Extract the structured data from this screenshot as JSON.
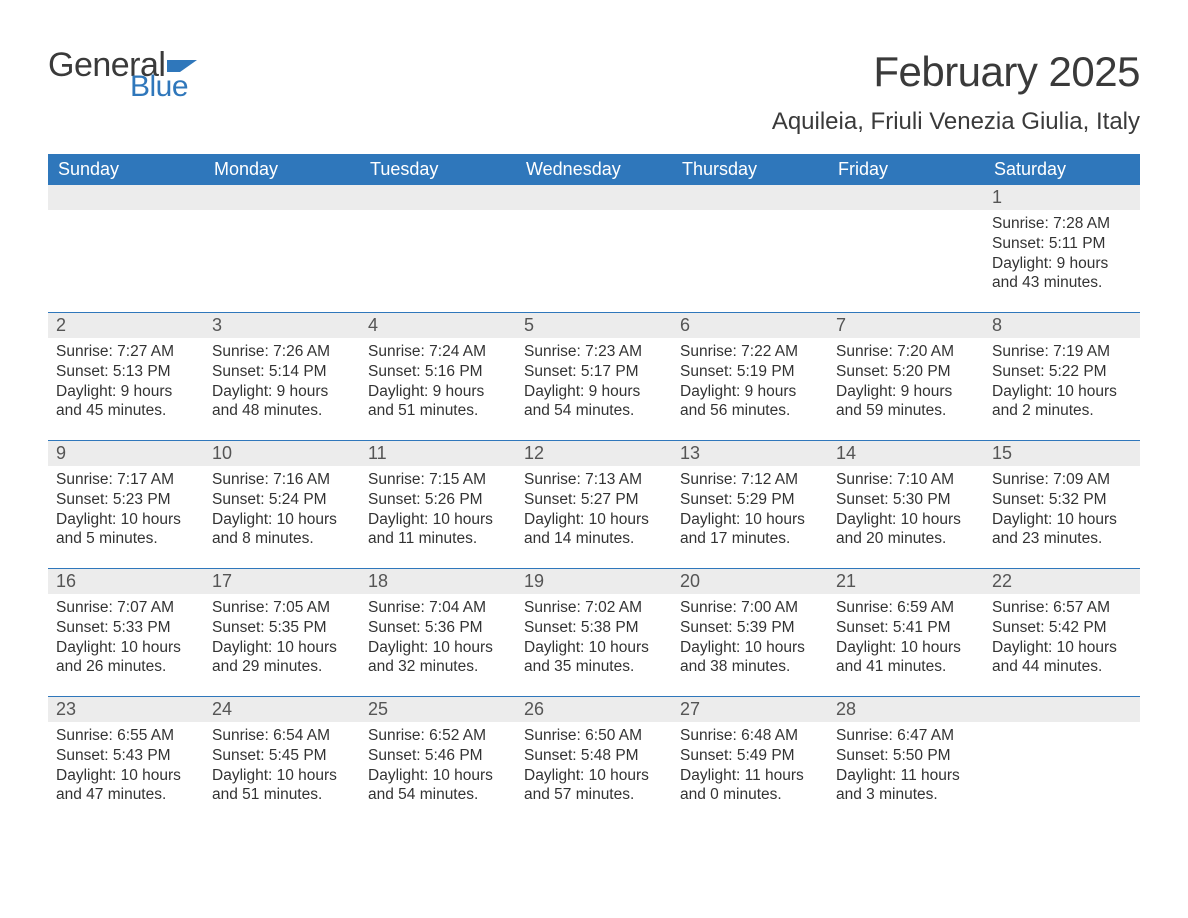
{
  "logo": {
    "text_general": "General",
    "text_blue": "Blue",
    "flag_color": "#2f77bb",
    "general_color": "#3a3a3a",
    "blue_color": "#2f77bb"
  },
  "title": "February 2025",
  "subtitle": "Aquileia, Friuli Venezia Giulia, Italy",
  "colors": {
    "header_bg": "#2f77bb",
    "header_text": "#ffffff",
    "daynum_bg": "#ececec",
    "daynum_text": "#555555",
    "body_text": "#333333",
    "rule": "#2f77bb",
    "page_bg": "#ffffff"
  },
  "weekdays": [
    "Sunday",
    "Monday",
    "Tuesday",
    "Wednesday",
    "Thursday",
    "Friday",
    "Saturday"
  ],
  "weeks": [
    {
      "days": [
        {
          "num": "",
          "lines": [
            "",
            "",
            "",
            ""
          ]
        },
        {
          "num": "",
          "lines": [
            "",
            "",
            "",
            ""
          ]
        },
        {
          "num": "",
          "lines": [
            "",
            "",
            "",
            ""
          ]
        },
        {
          "num": "",
          "lines": [
            "",
            "",
            "",
            ""
          ]
        },
        {
          "num": "",
          "lines": [
            "",
            "",
            "",
            ""
          ]
        },
        {
          "num": "",
          "lines": [
            "",
            "",
            "",
            ""
          ]
        },
        {
          "num": "1",
          "lines": [
            "Sunrise: 7:28 AM",
            "Sunset: 5:11 PM",
            "Daylight: 9 hours",
            "and 43 minutes."
          ]
        }
      ]
    },
    {
      "days": [
        {
          "num": "2",
          "lines": [
            "Sunrise: 7:27 AM",
            "Sunset: 5:13 PM",
            "Daylight: 9 hours",
            "and 45 minutes."
          ]
        },
        {
          "num": "3",
          "lines": [
            "Sunrise: 7:26 AM",
            "Sunset: 5:14 PM",
            "Daylight: 9 hours",
            "and 48 minutes."
          ]
        },
        {
          "num": "4",
          "lines": [
            "Sunrise: 7:24 AM",
            "Sunset: 5:16 PM",
            "Daylight: 9 hours",
            "and 51 minutes."
          ]
        },
        {
          "num": "5",
          "lines": [
            "Sunrise: 7:23 AM",
            "Sunset: 5:17 PM",
            "Daylight: 9 hours",
            "and 54 minutes."
          ]
        },
        {
          "num": "6",
          "lines": [
            "Sunrise: 7:22 AM",
            "Sunset: 5:19 PM",
            "Daylight: 9 hours",
            "and 56 minutes."
          ]
        },
        {
          "num": "7",
          "lines": [
            "Sunrise: 7:20 AM",
            "Sunset: 5:20 PM",
            "Daylight: 9 hours",
            "and 59 minutes."
          ]
        },
        {
          "num": "8",
          "lines": [
            "Sunrise: 7:19 AM",
            "Sunset: 5:22 PM",
            "Daylight: 10 hours",
            "and 2 minutes."
          ]
        }
      ]
    },
    {
      "days": [
        {
          "num": "9",
          "lines": [
            "Sunrise: 7:17 AM",
            "Sunset: 5:23 PM",
            "Daylight: 10 hours",
            "and 5 minutes."
          ]
        },
        {
          "num": "10",
          "lines": [
            "Sunrise: 7:16 AM",
            "Sunset: 5:24 PM",
            "Daylight: 10 hours",
            "and 8 minutes."
          ]
        },
        {
          "num": "11",
          "lines": [
            "Sunrise: 7:15 AM",
            "Sunset: 5:26 PM",
            "Daylight: 10 hours",
            "and 11 minutes."
          ]
        },
        {
          "num": "12",
          "lines": [
            "Sunrise: 7:13 AM",
            "Sunset: 5:27 PM",
            "Daylight: 10 hours",
            "and 14 minutes."
          ]
        },
        {
          "num": "13",
          "lines": [
            "Sunrise: 7:12 AM",
            "Sunset: 5:29 PM",
            "Daylight: 10 hours",
            "and 17 minutes."
          ]
        },
        {
          "num": "14",
          "lines": [
            "Sunrise: 7:10 AM",
            "Sunset: 5:30 PM",
            "Daylight: 10 hours",
            "and 20 minutes."
          ]
        },
        {
          "num": "15",
          "lines": [
            "Sunrise: 7:09 AM",
            "Sunset: 5:32 PM",
            "Daylight: 10 hours",
            "and 23 minutes."
          ]
        }
      ]
    },
    {
      "days": [
        {
          "num": "16",
          "lines": [
            "Sunrise: 7:07 AM",
            "Sunset: 5:33 PM",
            "Daylight: 10 hours",
            "and 26 minutes."
          ]
        },
        {
          "num": "17",
          "lines": [
            "Sunrise: 7:05 AM",
            "Sunset: 5:35 PM",
            "Daylight: 10 hours",
            "and 29 minutes."
          ]
        },
        {
          "num": "18",
          "lines": [
            "Sunrise: 7:04 AM",
            "Sunset: 5:36 PM",
            "Daylight: 10 hours",
            "and 32 minutes."
          ]
        },
        {
          "num": "19",
          "lines": [
            "Sunrise: 7:02 AM",
            "Sunset: 5:38 PM",
            "Daylight: 10 hours",
            "and 35 minutes."
          ]
        },
        {
          "num": "20",
          "lines": [
            "Sunrise: 7:00 AM",
            "Sunset: 5:39 PM",
            "Daylight: 10 hours",
            "and 38 minutes."
          ]
        },
        {
          "num": "21",
          "lines": [
            "Sunrise: 6:59 AM",
            "Sunset: 5:41 PM",
            "Daylight: 10 hours",
            "and 41 minutes."
          ]
        },
        {
          "num": "22",
          "lines": [
            "Sunrise: 6:57 AM",
            "Sunset: 5:42 PM",
            "Daylight: 10 hours",
            "and 44 minutes."
          ]
        }
      ]
    },
    {
      "days": [
        {
          "num": "23",
          "lines": [
            "Sunrise: 6:55 AM",
            "Sunset: 5:43 PM",
            "Daylight: 10 hours",
            "and 47 minutes."
          ]
        },
        {
          "num": "24",
          "lines": [
            "Sunrise: 6:54 AM",
            "Sunset: 5:45 PM",
            "Daylight: 10 hours",
            "and 51 minutes."
          ]
        },
        {
          "num": "25",
          "lines": [
            "Sunrise: 6:52 AM",
            "Sunset: 5:46 PM",
            "Daylight: 10 hours",
            "and 54 minutes."
          ]
        },
        {
          "num": "26",
          "lines": [
            "Sunrise: 6:50 AM",
            "Sunset: 5:48 PM",
            "Daylight: 10 hours",
            "and 57 minutes."
          ]
        },
        {
          "num": "27",
          "lines": [
            "Sunrise: 6:48 AM",
            "Sunset: 5:49 PM",
            "Daylight: 11 hours",
            "and 0 minutes."
          ]
        },
        {
          "num": "28",
          "lines": [
            "Sunrise: 6:47 AM",
            "Sunset: 5:50 PM",
            "Daylight: 11 hours",
            "and 3 minutes."
          ]
        },
        {
          "num": "",
          "lines": [
            "",
            "",
            "",
            ""
          ]
        }
      ]
    }
  ]
}
